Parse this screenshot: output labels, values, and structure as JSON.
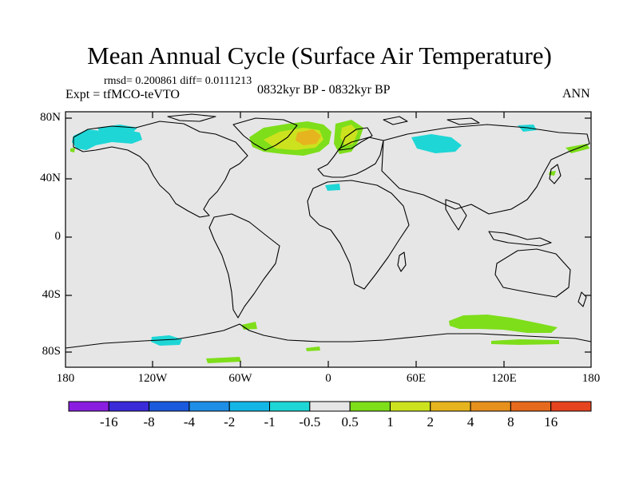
{
  "title": "Mean Annual Cycle (Surface Air Temperature)",
  "stats": "rmsd= 0.200861 diff= 0.0111213",
  "experiment": "Expt = tfMCO-teVTO",
  "period": "0832kyr BP - 0832kyr BP",
  "season": "ANN",
  "lat_labels": [
    "80N",
    "40N",
    "0",
    "40S",
    "80S"
  ],
  "lon_labels": [
    "180",
    "120W",
    "60W",
    "0",
    "60E",
    "120E",
    "180"
  ],
  "colorbar": {
    "labels": [
      "-16",
      "-8",
      "-4",
      "-2",
      "-1",
      "-0.5",
      "0.5",
      "1",
      "2",
      "4",
      "8",
      "16"
    ],
    "colors": [
      "#8a1ee0",
      "#3a2ad8",
      "#1a5adc",
      "#1f8ee6",
      "#14b6e6",
      "#1ed6d6",
      "#e6e6e6",
      "#7ede1a",
      "#cce21e",
      "#e6b41e",
      "#e6901e",
      "#e66a1e",
      "#e6441e"
    ]
  },
  "map_colors": {
    "land_bg": "#e6e6e6",
    "coast": "#000000",
    "cyan": "#1ed6d6",
    "green": "#7ede1a",
    "yellow": "#cce21e",
    "orange": "#e6b41e",
    "deep_orange": "#e6901e"
  }
}
